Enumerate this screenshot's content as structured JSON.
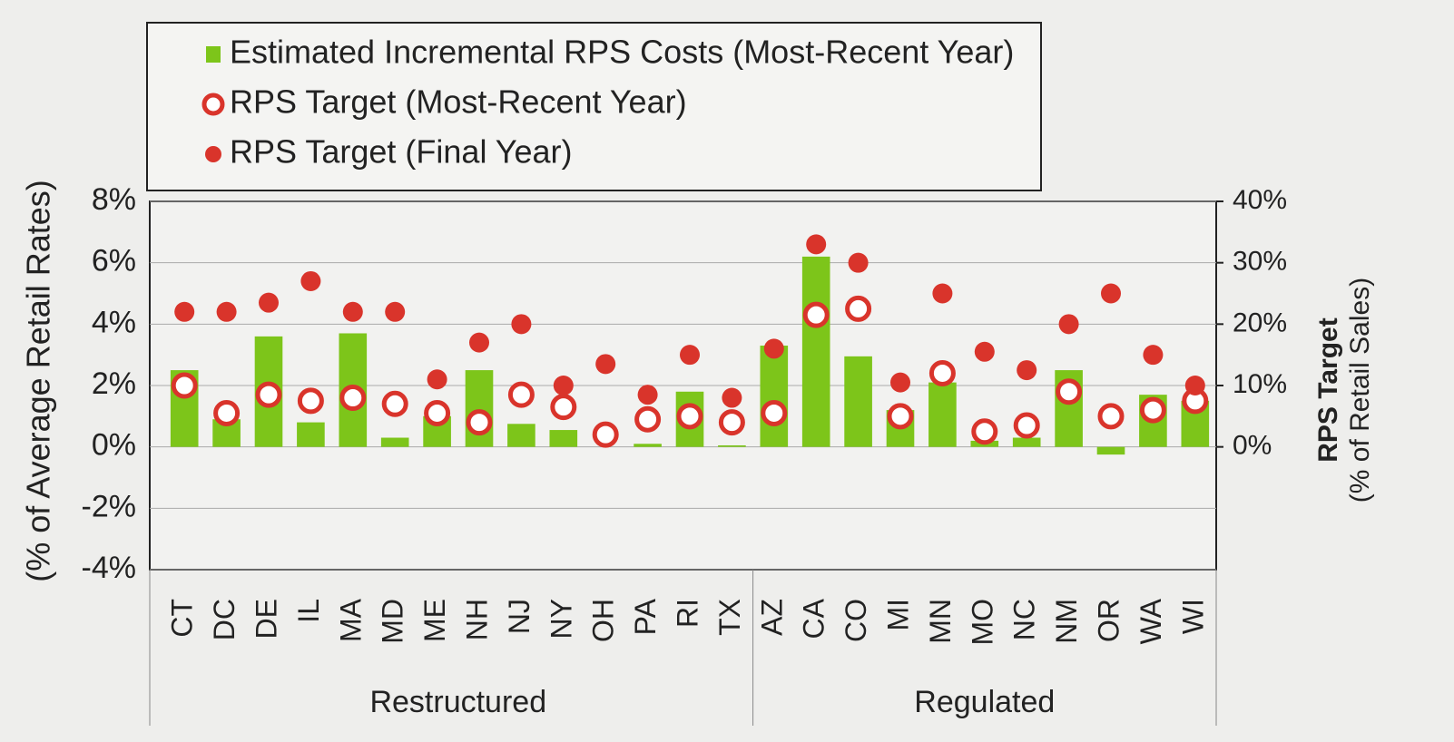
{
  "chart_data": {
    "type": "bar",
    "categories": [
      "CT",
      "DC",
      "DE",
      "IL",
      "MA",
      "MD",
      "ME",
      "NH",
      "NJ",
      "NY",
      "OH",
      "PA",
      "RI",
      "TX",
      "AZ",
      "CA",
      "CO",
      "MI",
      "MN",
      "MO",
      "NC",
      "NM",
      "OR",
      "WA",
      "WI"
    ],
    "groups": [
      {
        "label": "Restructured",
        "count": 14
      },
      {
        "label": "Regulated",
        "count": 11
      }
    ],
    "series": [
      {
        "name": "Estimated Incremental RPS Costs (Most-Recent Year)",
        "color": "#7dc51a",
        "marker": "bar",
        "values": [
          2.5,
          0.9,
          3.6,
          0.8,
          3.7,
          0.3,
          1.0,
          2.5,
          0.75,
          0.55,
          0,
          0.1,
          1.8,
          0.05,
          3.3,
          6.2,
          2.95,
          1.2,
          2.1,
          0.2,
          0.3,
          2.5,
          -0.25,
          1.7,
          1.5
        ]
      },
      {
        "name": "RPS Target (Most-Recent Year)",
        "color": "#d9342b",
        "marker": "open-circle",
        "axis": "y2",
        "values": [
          10,
          5.5,
          8.5,
          7.5,
          8,
          7,
          5.5,
          4,
          8.5,
          6.5,
          2,
          4.5,
          5,
          4,
          5.5,
          21.5,
          22.5,
          5,
          12,
          2.5,
          3.5,
          9,
          5,
          6,
          7.5
        ]
      },
      {
        "name": "RPS Target (Final Year)",
        "color": "#d9342b",
        "marker": "dot",
        "axis": "y2",
        "values": [
          22,
          22,
          23.5,
          27,
          22,
          22,
          11,
          17,
          20,
          10,
          13.5,
          8.5,
          15,
          8,
          16,
          33,
          30,
          10.5,
          25,
          15.5,
          12.5,
          20,
          25,
          15,
          10
        ]
      }
    ],
    "ylabel": "(% of Average Retail Rates)",
    "y2label": "RPS Target",
    "y2sublabel": "(% of Retail Sales)",
    "ylim": [
      -4,
      8
    ],
    "yticks": [
      {
        "value": -4,
        "label": "-4%"
      },
      {
        "value": -2,
        "label": "-2%"
      },
      {
        "value": 0,
        "label": "0%"
      },
      {
        "value": 2,
        "label": "2%"
      },
      {
        "value": 4,
        "label": "4%"
      },
      {
        "value": 6,
        "label": "6%"
      },
      {
        "value": 8,
        "label": "8%"
      }
    ],
    "y2lim": [
      -20,
      40
    ],
    "y2ticks": [
      {
        "value": 0,
        "label": "0%"
      },
      {
        "value": 10,
        "label": "10%"
      },
      {
        "value": 20,
        "label": "20%"
      },
      {
        "value": 30,
        "label": "30%"
      },
      {
        "value": 40,
        "label": "40%"
      }
    ],
    "grid": true
  }
}
